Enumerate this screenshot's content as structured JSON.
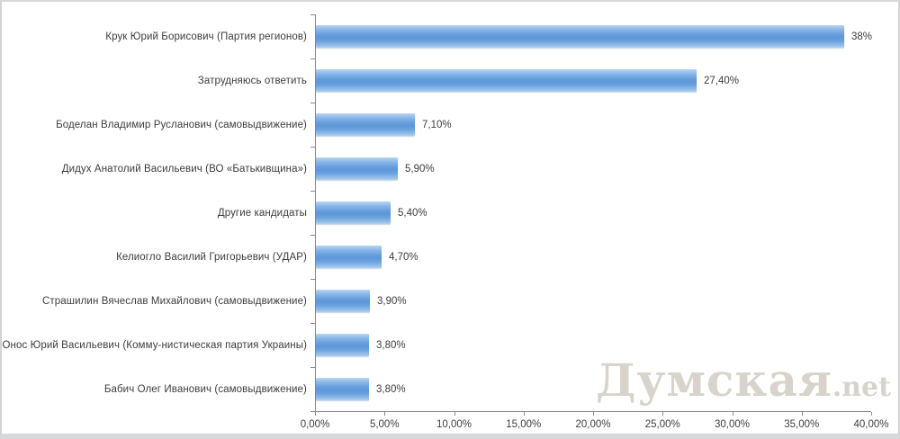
{
  "chart_data": {
    "type": "bar",
    "orientation": "horizontal",
    "title": "",
    "xlabel": "",
    "ylabel": "",
    "xlim": [
      0,
      40
    ],
    "grid": false,
    "legend": "none",
    "bar_color": "#619bda",
    "categories": [
      "Крук Юрий Борисович (Партия регионов)",
      "Затрудняюсь ответить",
      "Боделан Владимир Русланович (самовыдвижение)",
      "Дидух Анатолий Васильевич (ВО «Батькивщина»)",
      "Другие кандидаты",
      "Келиогло Василий Григорьевич (УДАР)",
      "Страшилин Вячеслав Михайлович (самовыдвижение)",
      "Онос Юрий Васильевич (Комму-нистическая партия Украины)",
      "Бабич Олег Иванович (самовыдвижение)"
    ],
    "values": [
      38,
      27.4,
      7.1,
      5.9,
      5.4,
      4.7,
      3.9,
      3.8,
      3.8
    ],
    "value_labels": [
      "38%",
      "27,40%",
      "7,10%",
      "5,90%",
      "5,40%",
      "4,70%",
      "3,90%",
      "3,80%",
      "3,80%"
    ],
    "x_tick_labels": [
      "0,00%",
      "5,00%",
      "10,00%",
      "15,00%",
      "20,00%",
      "25,00%",
      "30,00%",
      "35,00%",
      "40,00%"
    ],
    "x_tick_values": [
      0,
      5,
      10,
      15,
      20,
      25,
      30,
      35,
      40
    ]
  },
  "watermark": {
    "main": "Думская",
    "suffix": ".net",
    "color": "#d8d4cb"
  }
}
